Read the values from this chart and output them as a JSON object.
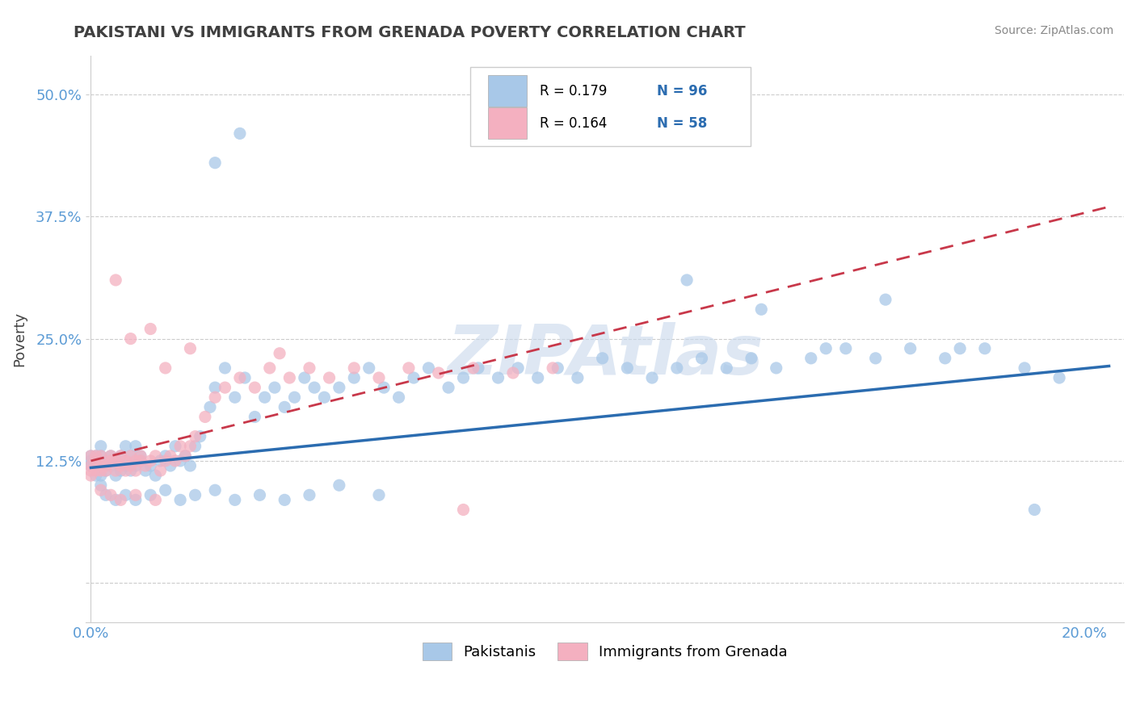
{
  "title": "PAKISTANI VS IMMIGRANTS FROM GRENADA POVERTY CORRELATION CHART",
  "source": "Source: ZipAtlas.com",
  "ylabel": "Poverty",
  "xlim_min": -0.001,
  "xlim_max": 0.208,
  "ylim_min": -0.04,
  "ylim_max": 0.54,
  "ytick_vals": [
    0.0,
    0.125,
    0.25,
    0.375,
    0.5
  ],
  "ytick_labels": [
    "",
    "12.5%",
    "25.0%",
    "37.5%",
    "50.0%"
  ],
  "xtick_vals": [
    0.0,
    0.2
  ],
  "xtick_labels": [
    "0.0%",
    "20.0%"
  ],
  "legend_r1": "R = 0.179",
  "legend_n1": "N = 96",
  "legend_r2": "R = 0.164",
  "legend_n2": "N = 58",
  "blue_fill": "#a8c8e8",
  "pink_fill": "#f4b0c0",
  "blue_edge": "#5b9bd5",
  "pink_edge": "#e06080",
  "blue_trend": "#2b6cb0",
  "pink_trend": "#c8384a",
  "title_color": "#404040",
  "axis_color": "#5b9bd5",
  "watermark": "ZIPAtlas",
  "grid_color": "#cccccc",
  "source_color": "#888888",
  "blue_scatter_x": [
    0.0,
    0.0,
    0.0,
    0.001,
    0.001,
    0.001,
    0.002,
    0.002,
    0.002,
    0.003,
    0.003,
    0.004,
    0.004,
    0.005,
    0.005,
    0.006,
    0.006,
    0.007,
    0.007,
    0.008,
    0.008,
    0.009,
    0.009,
    0.01,
    0.01,
    0.011,
    0.012,
    0.013,
    0.014,
    0.015,
    0.016,
    0.017,
    0.018,
    0.019,
    0.02,
    0.021,
    0.022,
    0.024,
    0.025,
    0.027,
    0.029,
    0.031,
    0.033,
    0.035,
    0.037,
    0.039,
    0.041,
    0.043,
    0.045,
    0.047,
    0.05,
    0.053,
    0.056,
    0.059,
    0.062,
    0.065,
    0.068,
    0.072,
    0.075,
    0.078,
    0.082,
    0.086,
    0.09,
    0.094,
    0.098,
    0.103,
    0.108,
    0.113,
    0.118,
    0.123,
    0.128,
    0.133,
    0.138,
    0.145,
    0.152,
    0.158,
    0.165,
    0.172,
    0.18,
    0.188,
    0.195,
    0.002,
    0.003,
    0.005,
    0.007,
    0.009,
    0.012,
    0.015,
    0.018,
    0.021,
    0.025,
    0.029,
    0.034,
    0.039,
    0.044,
    0.05,
    0.058
  ],
  "blue_scatter_y": [
    0.125,
    0.13,
    0.12,
    0.11,
    0.13,
    0.12,
    0.11,
    0.14,
    0.13,
    0.12,
    0.115,
    0.13,
    0.12,
    0.125,
    0.11,
    0.13,
    0.115,
    0.12,
    0.14,
    0.13,
    0.115,
    0.12,
    0.14,
    0.125,
    0.13,
    0.115,
    0.12,
    0.11,
    0.125,
    0.13,
    0.12,
    0.14,
    0.125,
    0.13,
    0.12,
    0.14,
    0.15,
    0.18,
    0.2,
    0.22,
    0.19,
    0.21,
    0.17,
    0.19,
    0.2,
    0.18,
    0.19,
    0.21,
    0.2,
    0.19,
    0.2,
    0.21,
    0.22,
    0.2,
    0.19,
    0.21,
    0.22,
    0.2,
    0.21,
    0.22,
    0.21,
    0.22,
    0.21,
    0.22,
    0.21,
    0.23,
    0.22,
    0.21,
    0.22,
    0.23,
    0.22,
    0.23,
    0.22,
    0.23,
    0.24,
    0.23,
    0.24,
    0.23,
    0.24,
    0.22,
    0.21,
    0.1,
    0.09,
    0.085,
    0.09,
    0.085,
    0.09,
    0.095,
    0.085,
    0.09,
    0.095,
    0.085,
    0.09,
    0.085,
    0.09,
    0.1,
    0.09
  ],
  "blue_outliers_x": [
    0.025,
    0.03,
    0.12,
    0.135,
    0.148,
    0.16,
    0.175,
    0.19
  ],
  "blue_outliers_y": [
    0.43,
    0.46,
    0.31,
    0.28,
    0.24,
    0.29,
    0.24,
    0.075
  ],
  "pink_scatter_x": [
    0.0,
    0.0,
    0.0,
    0.0,
    0.001,
    0.001,
    0.001,
    0.002,
    0.002,
    0.002,
    0.003,
    0.003,
    0.004,
    0.004,
    0.005,
    0.005,
    0.006,
    0.006,
    0.007,
    0.007,
    0.008,
    0.008,
    0.009,
    0.009,
    0.01,
    0.01,
    0.011,
    0.012,
    0.013,
    0.014,
    0.015,
    0.016,
    0.017,
    0.018,
    0.019,
    0.02,
    0.021,
    0.023,
    0.025,
    0.027,
    0.03,
    0.033,
    0.036,
    0.04,
    0.044,
    0.048,
    0.053,
    0.058,
    0.064,
    0.07,
    0.077,
    0.085,
    0.093,
    0.002,
    0.004,
    0.006,
    0.009,
    0.013
  ],
  "pink_scatter_y": [
    0.13,
    0.12,
    0.115,
    0.11,
    0.125,
    0.115,
    0.13,
    0.12,
    0.115,
    0.13,
    0.12,
    0.115,
    0.125,
    0.13,
    0.115,
    0.125,
    0.12,
    0.13,
    0.115,
    0.125,
    0.12,
    0.13,
    0.125,
    0.115,
    0.125,
    0.13,
    0.12,
    0.125,
    0.13,
    0.115,
    0.125,
    0.13,
    0.125,
    0.14,
    0.13,
    0.14,
    0.15,
    0.17,
    0.19,
    0.2,
    0.21,
    0.2,
    0.22,
    0.21,
    0.22,
    0.21,
    0.22,
    0.21,
    0.22,
    0.215,
    0.22,
    0.215,
    0.22,
    0.095,
    0.09,
    0.085,
    0.09,
    0.085
  ],
  "pink_outliers_x": [
    0.005,
    0.008,
    0.012,
    0.015,
    0.02,
    0.038,
    0.075
  ],
  "pink_outliers_y": [
    0.31,
    0.25,
    0.26,
    0.22,
    0.24,
    0.235,
    0.075
  ],
  "blue_trend_x": [
    0.0,
    0.205
  ],
  "blue_trend_y": [
    0.118,
    0.222
  ],
  "pink_trend_x": [
    0.0,
    0.205
  ],
  "pink_trend_y": [
    0.125,
    0.385
  ]
}
